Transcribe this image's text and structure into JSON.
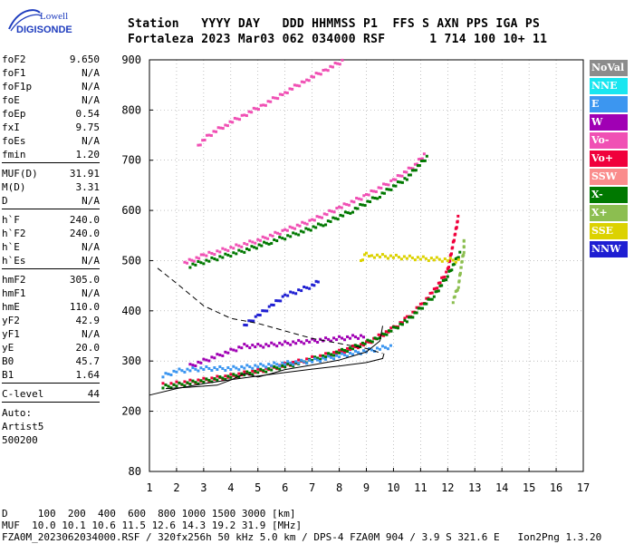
{
  "logo": {
    "line1": "Lowell",
    "line2": "DIGISONDE"
  },
  "header": {
    "labels": "Station   YYYY DAY   DDD HHMMSS P1  FFS S AXN PPS IGA PS",
    "values": "Fortaleza 2023 Mar03 062 034000 RSF      1 714 100 10+ 11"
  },
  "params": [
    {
      "k": "foF2",
      "v": "9.650"
    },
    {
      "k": "foF1",
      "v": "N/A"
    },
    {
      "k": "foF1p",
      "v": "N/A"
    },
    {
      "k": "foE",
      "v": "N/A"
    },
    {
      "k": "foEp",
      "v": "0.54"
    },
    {
      "k": "fxI",
      "v": "9.75"
    },
    {
      "k": "foEs",
      "v": "N/A"
    },
    {
      "k": "fmin",
      "v": "1.20"
    },
    {
      "sep": true
    },
    {
      "k": "MUF(D)",
      "v": "31.91"
    },
    {
      "k": "M(D)",
      "v": "3.31"
    },
    {
      "k": "D",
      "v": "N/A"
    },
    {
      "sep": true
    },
    {
      "k": "h`F",
      "v": "240.0"
    },
    {
      "k": "h`F2",
      "v": "240.0"
    },
    {
      "k": "h`E",
      "v": "N/A"
    },
    {
      "k": "h`Es",
      "v": "N/A"
    },
    {
      "sep": true
    },
    {
      "k": "hmF2",
      "v": "305.0"
    },
    {
      "k": "hmF1",
      "v": "N/A"
    },
    {
      "k": "hmE",
      "v": "110.0"
    },
    {
      "k": "yF2",
      "v": "42.9"
    },
    {
      "k": "yF1",
      "v": "N/A"
    },
    {
      "k": "yE",
      "v": "20.0"
    },
    {
      "k": "B0",
      "v": "45.7"
    },
    {
      "k": "B1",
      "v": "1.64"
    },
    {
      "sep": true
    },
    {
      "k": "C-level",
      "v": "44"
    },
    {
      "sep": true
    },
    {
      "plain": "Auto:"
    },
    {
      "plain": "Artist5"
    },
    {
      "plain": "500200"
    }
  ],
  "legend": [
    {
      "label": "NoVal",
      "color": "#8c8c8c"
    },
    {
      "label": "NNE",
      "color": "#19e6f0"
    },
    {
      "label": "E",
      "color": "#3c96f0"
    },
    {
      "label": "W",
      "color": "#a000b4"
    },
    {
      "label": "Vo-",
      "color": "#f050b4"
    },
    {
      "label": "Vo+",
      "color": "#f0003c"
    },
    {
      "label": "SSW",
      "color": "#fa8c8c"
    },
    {
      "label": "X-",
      "color": "#007800"
    },
    {
      "label": "X+",
      "color": "#8cbe50"
    },
    {
      "label": "SSE",
      "color": "#dcd200"
    },
    {
      "label": "NNW",
      "color": "#1e1ed2"
    }
  ],
  "footer": {
    "line1": "D     100  200  400  600  800 1000 1500 3000 [km]",
    "line2": "MUF  10.0 10.1 10.6 11.5 12.6 14.3 19.2 31.9 [MHz]",
    "line3": "FZA0M_2023062034000.RSF / 320fx256h 50 kHz 5.0 km / DPS-4 FZA0M 904 / 3.9 S 321.6 E   Ion2Png 1.3.20"
  },
  "chart_data": {
    "type": "scatter",
    "title": "",
    "xlabel": "",
    "ylabel": "",
    "xlim": [
      1,
      17
    ],
    "ylim": [
      80,
      900
    ],
    "x_ticks": [
      1,
      2,
      3,
      4,
      5,
      6,
      7,
      8,
      9,
      10,
      11,
      12,
      13,
      14,
      15,
      16,
      17
    ],
    "y_ticks": [
      80,
      200,
      300,
      400,
      500,
      600,
      700,
      800,
      900
    ],
    "grid": true,
    "legend_position": "right",
    "traces": [
      {
        "color": "#f0003c",
        "points": [
          [
            1.5,
            252
          ],
          [
            2,
            255
          ],
          [
            3,
            262
          ],
          [
            4,
            270
          ],
          [
            5,
            280
          ],
          [
            6,
            292
          ],
          [
            7,
            305
          ],
          [
            8,
            318
          ],
          [
            9,
            335
          ],
          [
            10,
            365
          ],
          [
            10.5,
            385
          ],
          [
            11,
            410
          ],
          [
            11.5,
            440
          ],
          [
            12,
            480
          ],
          [
            12.3,
            560
          ],
          [
            12.4,
            590
          ]
        ]
      },
      {
        "color": "#007800",
        "points": [
          [
            1.5,
            248
          ],
          [
            2.5,
            256
          ],
          [
            3.5,
            264
          ],
          [
            4.5,
            274
          ],
          [
            5.5,
            284
          ],
          [
            6.5,
            296
          ],
          [
            7.5,
            310
          ],
          [
            8.5,
            326
          ],
          [
            9.5,
            348
          ],
          [
            10.5,
            380
          ],
          [
            11.5,
            430
          ],
          [
            12,
            470
          ],
          [
            12.5,
            520
          ]
        ]
      },
      {
        "color": "#f050b4",
        "points": [
          [
            2.3,
            495
          ],
          [
            3,
            510
          ],
          [
            4,
            525
          ],
          [
            5,
            540
          ],
          [
            6,
            560
          ],
          [
            7,
            580
          ],
          [
            8,
            605
          ],
          [
            9,
            630
          ],
          [
            10,
            660
          ],
          [
            10.8,
            690
          ],
          [
            11.2,
            715
          ]
        ]
      },
      {
        "color": "#007800",
        "points": [
          [
            2.5,
            490
          ],
          [
            3.5,
            505
          ],
          [
            4.5,
            520
          ],
          [
            5.5,
            538
          ],
          [
            6.5,
            555
          ],
          [
            7.5,
            575
          ],
          [
            8.5,
            600
          ],
          [
            9.5,
            630
          ],
          [
            10.5,
            665
          ],
          [
            11.3,
            710
          ]
        ]
      },
      {
        "color": "#f050b4",
        "points": [
          [
            2.8,
            730
          ],
          [
            3.2,
            750
          ],
          [
            3.8,
            770
          ],
          [
            4.5,
            790
          ],
          [
            5.2,
            810
          ],
          [
            6,
            835
          ],
          [
            6.8,
            860
          ],
          [
            7.5,
            880
          ],
          [
            8.2,
            900
          ]
        ]
      },
      {
        "color": "#a000b4",
        "points": [
          [
            2.5,
            290
          ],
          [
            3,
            300
          ],
          [
            3.5,
            310
          ],
          [
            4,
            320
          ],
          [
            4.5,
            330
          ],
          [
            5,
            330
          ],
          [
            6,
            335
          ],
          [
            7,
            340
          ],
          [
            8,
            345
          ],
          [
            9,
            350
          ]
        ]
      },
      {
        "color": "#3c96f0",
        "points": [
          [
            1.5,
            270
          ],
          [
            2,
            280
          ],
          [
            3,
            285
          ],
          [
            4,
            285
          ],
          [
            5,
            290
          ],
          [
            6,
            295
          ],
          [
            7,
            300
          ],
          [
            8,
            310
          ],
          [
            9,
            320
          ],
          [
            10,
            330
          ]
        ]
      },
      {
        "color": "#1e1ed2",
        "points": [
          [
            4.5,
            370
          ],
          [
            5,
            390
          ],
          [
            5.5,
            410
          ],
          [
            6,
            430
          ],
          [
            6.5,
            440
          ],
          [
            7,
            450
          ],
          [
            7.3,
            460
          ]
        ]
      },
      {
        "color": "#8cbe50",
        "points": [
          [
            12.2,
            420
          ],
          [
            12.4,
            450
          ],
          [
            12.5,
            490
          ],
          [
            12.6,
            520
          ],
          [
            12.6,
            545
          ]
        ]
      },
      {
        "color": "#dcd200",
        "points": [
          [
            8.8,
            500
          ],
          [
            9,
            515
          ],
          [
            9.2,
            510
          ],
          [
            12.5,
            500
          ]
        ]
      }
    ],
    "profile_solid": [
      [
        1,
        232
      ],
      [
        2,
        245
      ],
      [
        3,
        255
      ],
      [
        4,
        263
      ],
      [
        5,
        270
      ],
      [
        6,
        277
      ],
      [
        7,
        284
      ],
      [
        8,
        290
      ],
      [
        9,
        297
      ],
      [
        9.6,
        305
      ],
      [
        9.65,
        315
      ]
    ],
    "virtual_trace_solid": [
      [
        1.6,
        245
      ],
      [
        2.5,
        248
      ],
      [
        3.5,
        252
      ],
      [
        4,
        262
      ],
      [
        4.5,
        275
      ],
      [
        5,
        268
      ],
      [
        5.5,
        275
      ],
      [
        6,
        283
      ],
      [
        7,
        292
      ],
      [
        8,
        302
      ],
      [
        9,
        318
      ],
      [
        9.5,
        340
      ],
      [
        9.6,
        370
      ]
    ],
    "profile_dashed": [
      [
        1.3,
        485
      ],
      [
        2,
        455
      ],
      [
        3,
        410
      ],
      [
        4,
        385
      ],
      [
        5,
        375
      ],
      [
        6,
        360
      ],
      [
        7,
        345
      ],
      [
        8,
        335
      ],
      [
        9,
        325
      ],
      [
        9.6,
        315
      ]
    ]
  }
}
